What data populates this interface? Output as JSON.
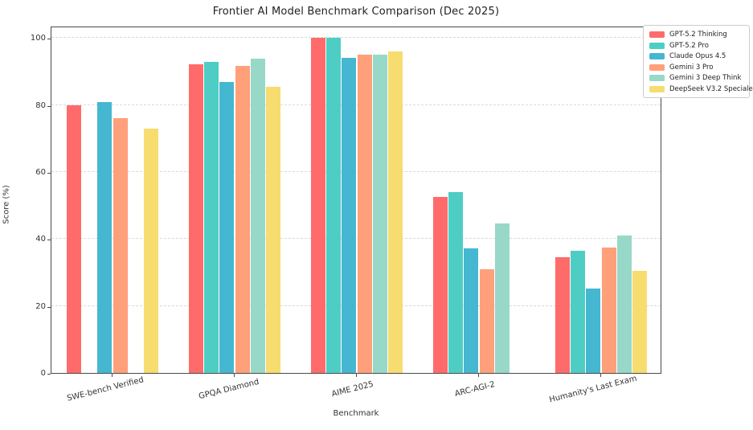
{
  "window": {
    "background": "#ffffff"
  },
  "chart_data": {
    "type": "bar",
    "title": "Frontier AI Model Benchmark Comparison (Dec 2025)",
    "xlabel": "Benchmark",
    "ylabel": "Score (%)",
    "categories": [
      "SWE-bench Verified",
      "GPQA Diamond",
      "AIME 2025",
      "ARC-AGI-2",
      "Humanity's Last Exam"
    ],
    "series": [
      {
        "name": "GPT-5.2 Thinking",
        "color": "#FF6B6B",
        "values": [
          80.0,
          92.2,
          100.0,
          52.5,
          34.5
        ]
      },
      {
        "name": "GPT-5.2 Pro",
        "color": "#4ECDC4",
        "values": [
          null,
          93.0,
          100.0,
          54.0,
          36.5
        ]
      },
      {
        "name": "Claude Opus 4.5",
        "color": "#45B7D1",
        "values": [
          80.9,
          87.0,
          94.0,
          37.3,
          25.2
        ]
      },
      {
        "name": "Gemini 3 Pro",
        "color": "#FFA07A",
        "values": [
          76.2,
          91.8,
          95.0,
          31.0,
          37.5
        ]
      },
      {
        "name": "Gemini 3 Deep Think",
        "color": "#98D8C8",
        "values": [
          null,
          93.8,
          95.0,
          44.7,
          41.0
        ]
      },
      {
        "name": "DeepSeek V3.2 Speciale",
        "color": "#F7DC6F",
        "values": [
          73.0,
          85.4,
          96.0,
          null,
          30.6
        ]
      }
    ],
    "ylim": [
      0,
      103.7
    ],
    "yticks": [
      0,
      20,
      40,
      60,
      80,
      100
    ],
    "grid": "horizontal-dashed",
    "legend_position": "outside-upper-right",
    "x_tick_rotation_deg": -14
  }
}
